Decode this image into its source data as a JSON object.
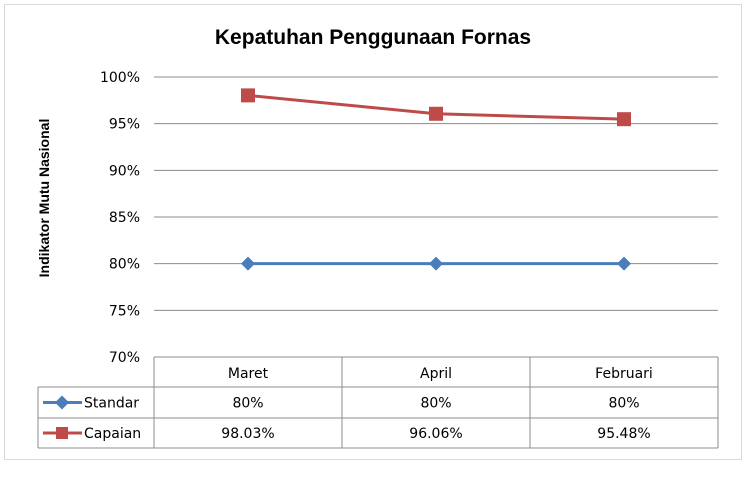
{
  "chart_data": {
    "type": "line",
    "title": "Kepatuhan Penggunaan Fornas",
    "xlabel": "",
    "ylabel": "Indikator Mutu Nasional",
    "categories": [
      "Maret",
      "April",
      "Februari"
    ],
    "ylim": [
      70,
      100
    ],
    "yticks": [
      "70%",
      "75%",
      "80%",
      "85%",
      "90%",
      "95%",
      "100%"
    ],
    "grid": true,
    "legend": "data-table",
    "series": [
      {
        "name": "Standar",
        "values": [
          80,
          80,
          80
        ],
        "labels": [
          "80%",
          "80%",
          "80%"
        ],
        "color": "#4a7ebb",
        "marker": "diamond"
      },
      {
        "name": "Capaian",
        "values": [
          98.03,
          96.06,
          95.48
        ],
        "labels": [
          "98.03%",
          "96.06%",
          "95.48%"
        ],
        "color": "#be4b48",
        "marker": "square"
      }
    ]
  }
}
